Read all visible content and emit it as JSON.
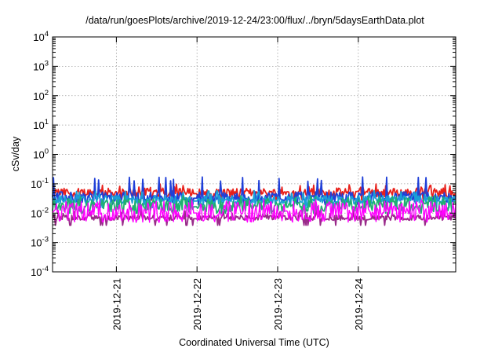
{
  "chart_data": {
    "type": "line",
    "title": "/data/run/goesPlots/archive/2019-12-24/23:00/flux/../bryn/5daysEarthData.plot",
    "xlabel": "Coordinated Universal Time (UTC)",
    "ylabel": "cSv/day",
    "yscale": "log",
    "ylim": [
      0.0001,
      10000
    ],
    "xlim": [
      "2019-12-20T05:00",
      "2019-12-25T05:00"
    ],
    "grid": true,
    "legend": "none",
    "x_ticks": [
      {
        "x": "2019-12-21T00:00",
        "label": "2019-12-21"
      },
      {
        "x": "2019-12-22T00:00",
        "label": "2019-12-22"
      },
      {
        "x": "2019-12-23T00:00",
        "label": "2019-12-23"
      },
      {
        "x": "2019-12-24T00:00",
        "label": "2019-12-24"
      }
    ],
    "y_ticks": [
      {
        "value": 0.0001,
        "base": "10",
        "exp": "-4"
      },
      {
        "value": 0.001,
        "base": "10",
        "exp": "-3"
      },
      {
        "value": 0.01,
        "base": "10",
        "exp": "-2"
      },
      {
        "value": 0.1,
        "base": "10",
        "exp": "-1"
      },
      {
        "value": 1,
        "base": "10",
        "exp": "0"
      },
      {
        "value": 10,
        "base": "10",
        "exp": "1"
      },
      {
        "value": 100,
        "base": "10",
        "exp": "2"
      },
      {
        "value": 1000,
        "base": "10",
        "exp": "3"
      },
      {
        "value": 10000,
        "base": "10",
        "exp": "4"
      }
    ],
    "data_gap": [
      "2019-12-21T22:45",
      "2019-12-22T00:00"
    ],
    "series": [
      {
        "color": "#e8201a",
        "typical": 0.05,
        "spread": 0.25,
        "spike_max": 0.1
      },
      {
        "color": "#1f3fd8",
        "typical": 0.035,
        "spread": 0.3,
        "spike_max": 0.17
      },
      {
        "color": "#1a9fd6",
        "typical": 0.028,
        "spread": 0.25,
        "spike_max": 0.06
      },
      {
        "color": "#20b070",
        "typical": 0.018,
        "spread": 0.35,
        "spike_max": 0.04
      },
      {
        "color": "#9a2a8a",
        "typical": 0.007,
        "spread": 0.15,
        "spike_max": 0.012
      },
      {
        "color": "#ff00ff",
        "typical": 0.011,
        "spread": 0.6,
        "spike_max": 0.03
      }
    ]
  }
}
